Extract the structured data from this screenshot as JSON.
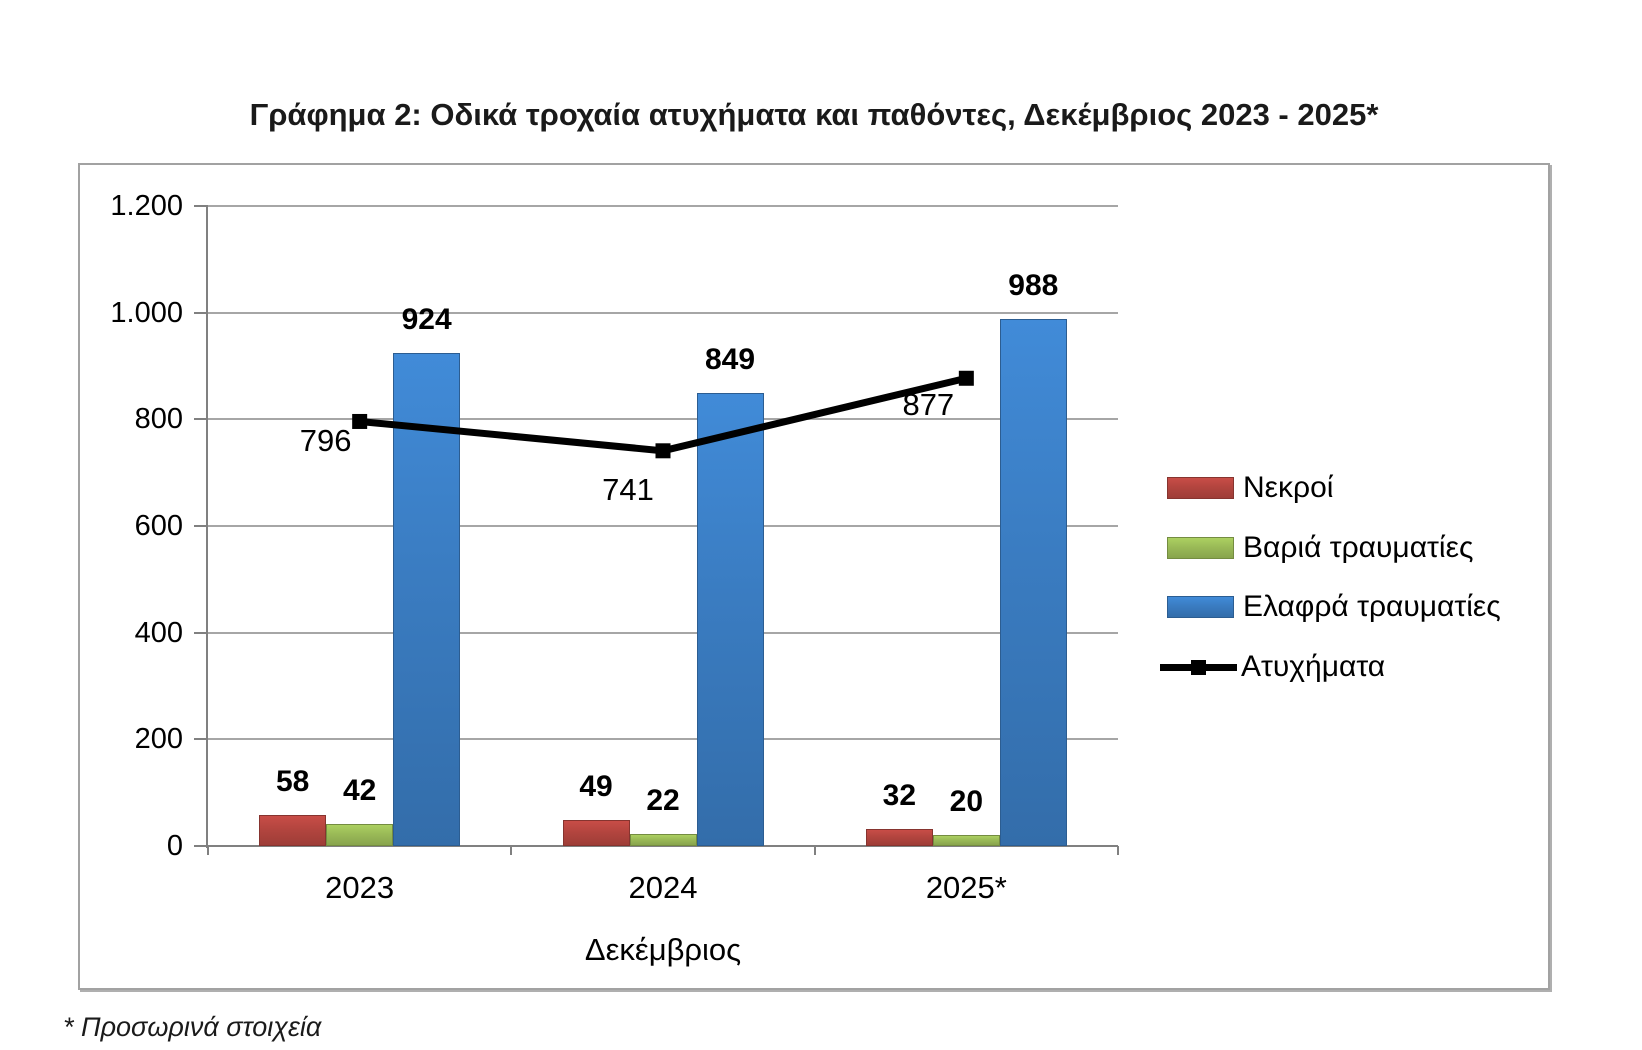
{
  "title": "Γράφημα 2: Οδικά τροχαία ατυχήματα και παθόντες, Δεκέμβριος 2023 - 2025*",
  "footnote": "* Προσωρινά στοιχεία",
  "chart_data": {
    "type": "bar",
    "subtype": "grouped bars with overlaid line series",
    "categories": [
      "2023",
      "2024",
      "2025*"
    ],
    "series": [
      {
        "name": "Νεκροί",
        "type": "bar",
        "color": "#b3453f",
        "values": [
          58,
          49,
          32
        ]
      },
      {
        "name": "Βαριά τραυματίες",
        "type": "bar",
        "color": "#9aba57",
        "values": [
          42,
          22,
          20
        ]
      },
      {
        "name": "Ελαφρά τραυματίες",
        "type": "bar",
        "color": "#3a7cc1",
        "values": [
          924,
          849,
          988
        ]
      },
      {
        "name": "Ατυχήματα",
        "type": "line",
        "color": "#000000",
        "values": [
          796,
          741,
          877
        ]
      }
    ],
    "xlabel": "Δεκέμβριος",
    "ylabel": "",
    "ylim": [
      0,
      1200
    ],
    "ytick_step": 200,
    "ytick_labels": [
      "0",
      "200",
      "400",
      "600",
      "800",
      "1.000",
      "1.200"
    ],
    "grid": true,
    "legend_position": "right",
    "axis_color": "#808080",
    "gridline_color": "#a6a6a6"
  }
}
